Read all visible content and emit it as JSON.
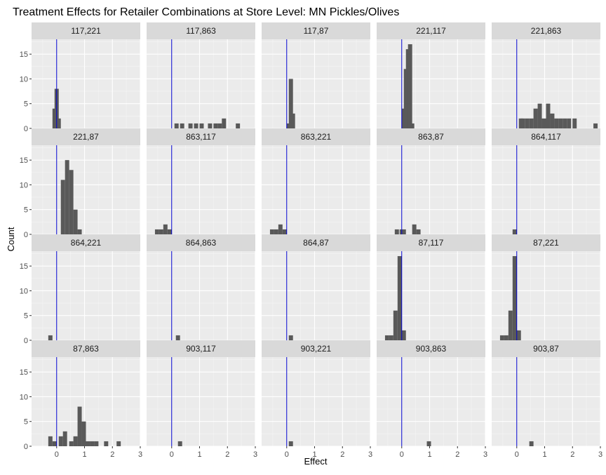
{
  "chart_data": {
    "type": "histogram_facet",
    "title": "Treatment Effects for Retailer Combinations at Store Level: MN Pickles/Olives",
    "xlabel": "Effect",
    "ylabel": "Count",
    "xlim": [
      -0.9,
      3.0
    ],
    "ylim": [
      0,
      18
    ],
    "x_ticks": [
      0,
      1,
      2,
      3
    ],
    "y_ticks": [
      0,
      5,
      10,
      15
    ],
    "bin_width": 0.15,
    "reference_line": {
      "x": 0,
      "color": "#0000cc"
    },
    "colors": {
      "bar": "#595959",
      "panel": "#ebebeb",
      "strip": "#d9d9d9",
      "grid": "#ffffff"
    },
    "panels": [
      {
        "label": "117,221",
        "bins": [
          [
            -0.15,
            4
          ],
          [
            -0.075,
            8
          ],
          [
            0.0,
            2
          ]
        ]
      },
      {
        "label": "117,863",
        "bins": [
          [
            0.1,
            1
          ],
          [
            0.3,
            1
          ],
          [
            0.6,
            1
          ],
          [
            0.8,
            1
          ],
          [
            1.0,
            1
          ],
          [
            1.3,
            1
          ],
          [
            1.5,
            1
          ],
          [
            1.65,
            1
          ],
          [
            1.8,
            2
          ],
          [
            2.3,
            1
          ]
        ]
      },
      {
        "label": "117,87",
        "bins": [
          [
            0.0,
            1
          ],
          [
            0.075,
            10
          ],
          [
            0.15,
            3
          ]
        ]
      },
      {
        "label": "221,117",
        "bins": [
          [
            0.0,
            4
          ],
          [
            0.075,
            12
          ],
          [
            0.15,
            16
          ],
          [
            0.225,
            17
          ],
          [
            0.3,
            1
          ]
        ]
      },
      {
        "label": "221,863",
        "bins": [
          [
            0.075,
            2
          ],
          [
            0.15,
            2
          ],
          [
            0.3,
            2
          ],
          [
            0.45,
            2
          ],
          [
            0.6,
            4
          ],
          [
            0.75,
            5
          ],
          [
            0.9,
            2
          ],
          [
            1.05,
            5
          ],
          [
            1.2,
            3
          ],
          [
            1.35,
            2
          ],
          [
            1.5,
            2
          ],
          [
            1.65,
            2
          ],
          [
            1.8,
            2
          ],
          [
            2.0,
            2
          ],
          [
            2.2,
            0
          ],
          [
            2.75,
            1
          ]
        ]
      },
      {
        "label": "221,87",
        "bins": [
          [
            0.15,
            11
          ],
          [
            0.3,
            15
          ],
          [
            0.45,
            13
          ],
          [
            0.6,
            5
          ],
          [
            0.75,
            1
          ]
        ]
      },
      {
        "label": "863,117",
        "bins": [
          [
            -0.6,
            1
          ],
          [
            -0.45,
            1
          ],
          [
            -0.3,
            2
          ],
          [
            -0.15,
            1
          ]
        ]
      },
      {
        "label": "863,221",
        "bins": [
          [
            -0.6,
            1
          ],
          [
            -0.45,
            1
          ],
          [
            -0.3,
            2
          ],
          [
            -0.15,
            1
          ]
        ]
      },
      {
        "label": "863,87",
        "bins": [
          [
            -0.25,
            1
          ],
          [
            -0.075,
            1
          ],
          [
            0.0,
            1
          ],
          [
            0.375,
            2
          ],
          [
            0.525,
            1
          ]
        ]
      },
      {
        "label": "864,117",
        "bins": [
          [
            -0.15,
            1
          ]
        ]
      },
      {
        "label": "864,221",
        "bins": [
          [
            -0.3,
            1
          ]
        ]
      },
      {
        "label": "864,863",
        "bins": [
          [
            0.15,
            1
          ]
        ]
      },
      {
        "label": "864,87",
        "bins": [
          [
            0.075,
            1
          ]
        ]
      },
      {
        "label": "87,117",
        "bins": [
          [
            -0.6,
            1
          ],
          [
            -0.45,
            1
          ],
          [
            -0.3,
            6
          ],
          [
            -0.15,
            17
          ],
          [
            0.0,
            2
          ]
        ]
      },
      {
        "label": "87,221",
        "bins": [
          [
            -0.6,
            1
          ],
          [
            -0.45,
            1
          ],
          [
            -0.3,
            6
          ],
          [
            -0.15,
            17
          ],
          [
            0.0,
            2
          ]
        ]
      },
      {
        "label": "87,863",
        "bins": [
          [
            -0.3,
            2
          ],
          [
            -0.15,
            1
          ],
          [
            0.075,
            2
          ],
          [
            0.225,
            3
          ],
          [
            0.45,
            1
          ],
          [
            0.6,
            2
          ],
          [
            0.75,
            8
          ],
          [
            0.9,
            5
          ],
          [
            1.05,
            1
          ],
          [
            1.2,
            1
          ],
          [
            1.35,
            1
          ],
          [
            1.7,
            1
          ],
          [
            2.15,
            1
          ]
        ]
      },
      {
        "label": "903,117",
        "bins": [
          [
            0.225,
            1
          ]
        ]
      },
      {
        "label": "903,221",
        "bins": [
          [
            0.075,
            1
          ]
        ]
      },
      {
        "label": "903,863",
        "bins": [
          [
            0.9,
            1
          ]
        ]
      },
      {
        "label": "903,87",
        "bins": [
          [
            0.45,
            1
          ]
        ]
      }
    ]
  }
}
